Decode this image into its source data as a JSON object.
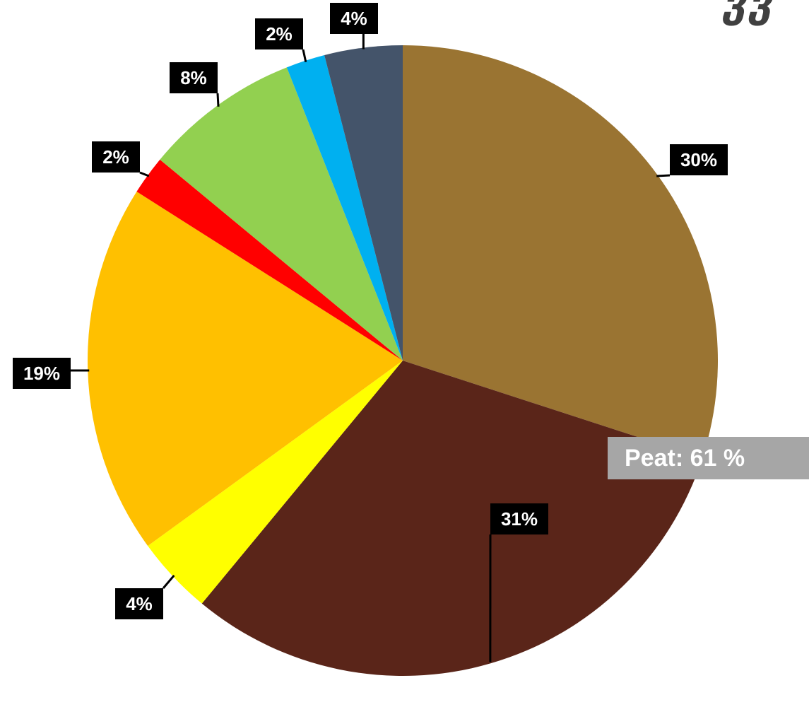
{
  "corner_text": "ვვ",
  "summary_label": "Peat: 61 %",
  "chart_data": {
    "type": "pie",
    "title": "",
    "start_angle_deg": 0,
    "direction": "clockwise",
    "label_style": {
      "background": "#000000",
      "color": "#ffffff"
    },
    "slices": [
      {
        "value": 30,
        "label": "30%",
        "color": "#9A7432"
      },
      {
        "value": 31,
        "label": "31%",
        "color": "#5A2519"
      },
      {
        "value": 4,
        "label": "4%",
        "color": "#FFFF00"
      },
      {
        "value": 19,
        "label": "19%",
        "color": "#FFC000"
      },
      {
        "value": 2,
        "label": "2%",
        "color": "#FF0000"
      },
      {
        "value": 8,
        "label": "8%",
        "color": "#92D050"
      },
      {
        "value": 2,
        "label": "2%",
        "color": "#00B0F0"
      },
      {
        "value": 4,
        "label": "4%",
        "color": "#44546A"
      }
    ]
  }
}
